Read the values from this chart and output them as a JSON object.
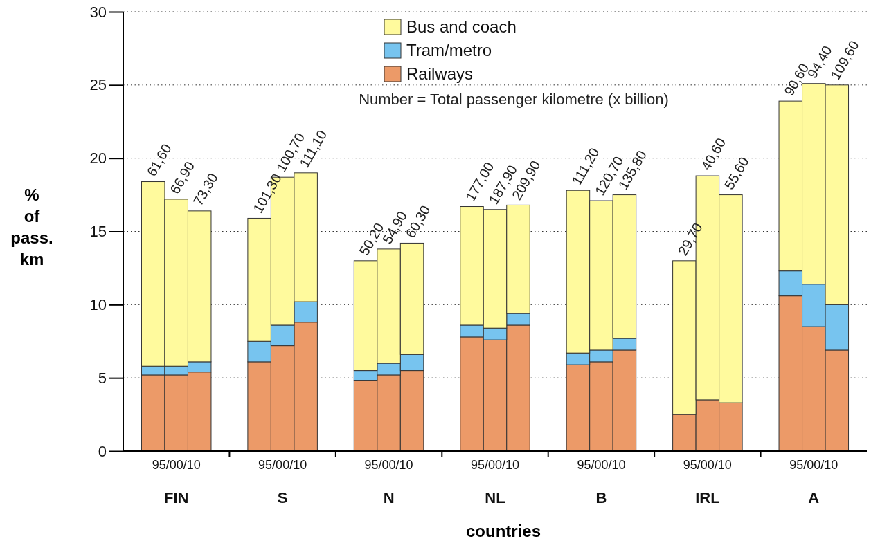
{
  "chart_data": {
    "type": "bar",
    "stacked": true,
    "xlabel": "countries",
    "ylabel": "% of pass. km",
    "categories": [
      null,
      "95/00/10",
      null,
      null,
      "95/00/10",
      null,
      null,
      "95/00/10",
      null,
      null,
      "95/00/10",
      null,
      null,
      "95/00/10",
      null,
      null,
      "95/00/10",
      null,
      null,
      "95/00/10",
      null
    ],
    "series": [
      {
        "name": "Railways",
        "color": "#ec9a68",
        "values": [
          5.2,
          5.2,
          5.4,
          6.1,
          7.2,
          8.8,
          4.8,
          5.2,
          5.5,
          7.8,
          7.6,
          8.6,
          5.9,
          6.1,
          6.9,
          2.5,
          3.5,
          3.3,
          10.6,
          8.5,
          6.9
        ]
      },
      {
        "name": "Tram/metro",
        "color": "#77c4ef",
        "values": [
          0.6,
          0.6,
          0.7,
          1.4,
          1.4,
          1.4,
          0.7,
          0.8,
          1.1,
          0.8,
          0.8,
          0.8,
          0.8,
          0.8,
          0.8,
          0,
          0,
          0,
          1.7,
          2.9,
          3.1
        ]
      },
      {
        "name": "Bus and coach",
        "color": "#fffa9d",
        "values": [
          12.6,
          11.4,
          10.3,
          8.4,
          10.1,
          8.8,
          7.5,
          7.8,
          7.6,
          8.1,
          8.1,
          7.4,
          11.1,
          10.2,
          9.8,
          10.5,
          15.3,
          14.2,
          11.6,
          13.7,
          15.0
        ]
      }
    ],
    "annotations": [
      "Number = Total passenger kilometre (x billion)",
      "61,60",
      "66,90",
      "73,30",
      "101,30",
      "100,70",
      "111,10",
      "50,20",
      "54,90",
      "60,30",
      "177,00",
      "187,90",
      "209,90",
      "111,20",
      "120,70",
      "135,80",
      "29,70",
      "40,60",
      "55,60",
      "90,60",
      "94,40",
      "109,60",
      "FIN",
      "S",
      "N",
      "NL",
      "B",
      "IRL",
      "A"
    ],
    "ylim": [
      0,
      30
    ],
    "yticks": [
      0,
      5,
      10,
      15,
      20,
      25,
      30
    ],
    "grid": "y",
    "legend": "top"
  }
}
